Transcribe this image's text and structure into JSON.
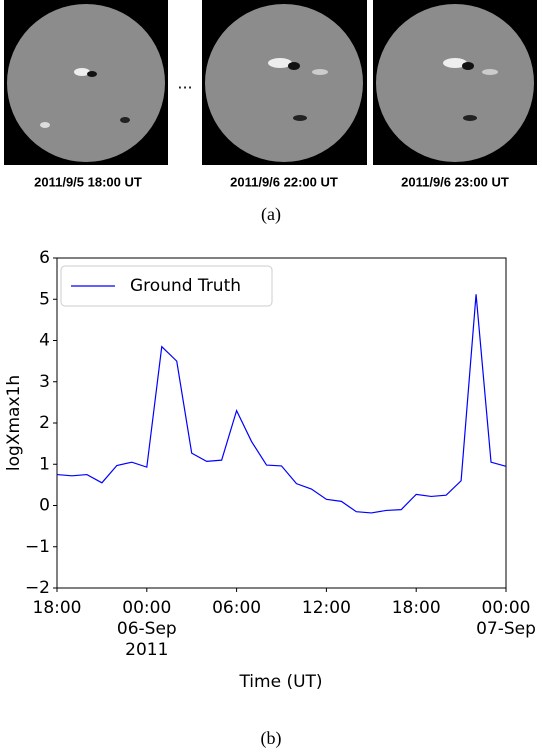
{
  "figure_a": {
    "captions": [
      "2011/9/5 18:00 UT",
      "2011/9/6 22:00 UT",
      "2011/9/6 23:00 UT"
    ],
    "ellipsis": "...",
    "label": "(a)"
  },
  "chart_data": {
    "type": "line",
    "x": [
      0,
      1,
      2,
      3,
      4,
      5,
      6,
      7,
      8,
      9,
      10,
      11,
      12,
      13,
      14,
      15,
      16,
      17,
      18,
      19,
      20,
      21,
      22,
      23,
      24,
      25,
      26,
      27,
      28,
      29,
      30
    ],
    "series": [
      {
        "name": "Ground Truth",
        "color": "#0000ff",
        "values": [
          0.75,
          0.72,
          0.75,
          0.55,
          0.97,
          1.05,
          0.93,
          3.85,
          3.5,
          1.27,
          1.07,
          1.1,
          2.3,
          1.55,
          0.98,
          0.96,
          0.53,
          0.4,
          0.15,
          0.1,
          -0.15,
          -0.18,
          -0.12,
          -0.1,
          0.27,
          0.22,
          0.25,
          0.6,
          5.12,
          1.05,
          0.95
        ]
      }
    ],
    "xlim": [
      0,
      30
    ],
    "xticks": [
      {
        "value": 0,
        "label": "18:00"
      },
      {
        "value": 6,
        "label": "00:00\n06-Sep\n2011"
      },
      {
        "value": 12,
        "label": "06:00"
      },
      {
        "value": 18,
        "label": "12:00"
      },
      {
        "value": 24,
        "label": "18:00"
      },
      {
        "value": 30,
        "label": "00:00\n07-Sep"
      }
    ],
    "ylim": [
      -2,
      6
    ],
    "yticks": [
      {
        "value": -2,
        "label": "−2"
      },
      {
        "value": -1,
        "label": "−1"
      },
      0,
      1,
      2,
      3,
      4,
      5,
      6
    ],
    "xlabel": "Time (UT)",
    "ylabel": "logXmax1h",
    "legend": "upper left",
    "grid": false
  },
  "figure_b_label": "(b)"
}
